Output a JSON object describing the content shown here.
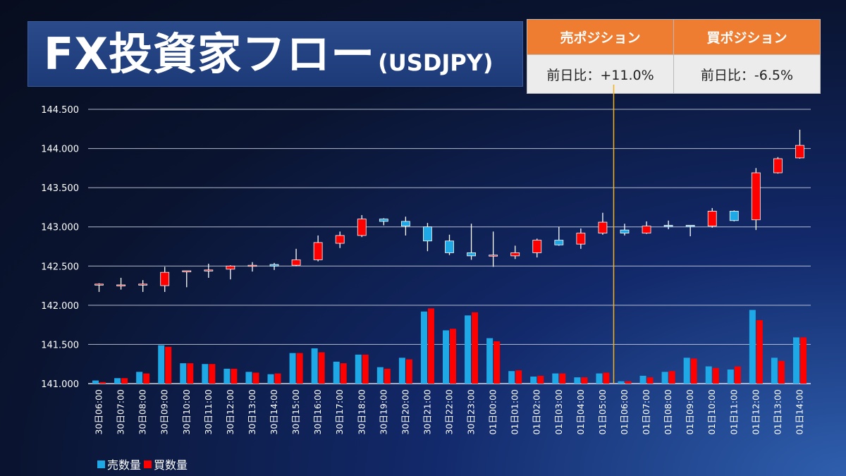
{
  "header": {
    "title_main": "FX投資家フロー",
    "title_sub": "(USDJPY)"
  },
  "positions": {
    "sell_label": "売ポジション",
    "buy_label": "買ポジション",
    "sell_change": "前日比：+11.0%",
    "buy_change": "前日比：-6.5%"
  },
  "colors": {
    "sell": "#1fa8e6",
    "buy": "#ff0000",
    "marker_line": "#f2b21b",
    "header_orange": "#ee7d31"
  },
  "legend": {
    "sell_volume": "売数量",
    "buy_volume": "買数量"
  },
  "chart_data": {
    "type": "candlestick+bar",
    "ylim": [
      141.0,
      144.5
    ],
    "yticks": [
      "144.500",
      "144.000",
      "143.500",
      "143.000",
      "142.500",
      "142.000",
      "141.500",
      "141.000"
    ],
    "ytick_values": [
      144.5,
      144.0,
      143.5,
      143.0,
      142.5,
      142.0,
      141.5,
      141.0
    ],
    "marker_category": "01日05:00",
    "categories": [
      "30日06:00",
      "30日07:00",
      "30日08:00",
      "30日09:00",
      "30日10:00",
      "30日11:00",
      "30日12:00",
      "30日13:00",
      "30日14:00",
      "30日15:00",
      "30日16:00",
      "30日17:00",
      "30日18:00",
      "30日19:00",
      "30日20:00",
      "30日21:00",
      "30日22:00",
      "30日23:00",
      "01日00:00",
      "01日01:00",
      "01日02:00",
      "01日03:00",
      "01日04:00",
      "01日05:00",
      "01日06:00",
      "01日07:00",
      "01日08:00",
      "01日09:00",
      "01日10:00",
      "01日11:00",
      "01日12:00",
      "01日13:00",
      "01日14:00"
    ],
    "candles": [
      {
        "o": 142.26,
        "h": 142.28,
        "l": 142.17,
        "c": 142.27
      },
      {
        "o": 142.26,
        "h": 142.35,
        "l": 142.2,
        "c": 142.26
      },
      {
        "o": 142.26,
        "h": 142.32,
        "l": 142.17,
        "c": 142.27
      },
      {
        "o": 142.25,
        "h": 142.49,
        "l": 142.17,
        "c": 142.42
      },
      {
        "o": 142.43,
        "h": 142.44,
        "l": 142.23,
        "c": 142.44
      },
      {
        "o": 142.44,
        "h": 142.53,
        "l": 142.35,
        "c": 142.45
      },
      {
        "o": 142.46,
        "h": 142.51,
        "l": 142.33,
        "c": 142.5
      },
      {
        "o": 142.5,
        "h": 142.55,
        "l": 142.43,
        "c": 142.51
      },
      {
        "o": 142.52,
        "h": 142.54,
        "l": 142.45,
        "c": 142.5
      },
      {
        "o": 142.51,
        "h": 142.72,
        "l": 142.5,
        "c": 142.58
      },
      {
        "o": 142.58,
        "h": 142.89,
        "l": 142.56,
        "c": 142.8
      },
      {
        "o": 142.79,
        "h": 142.94,
        "l": 142.73,
        "c": 142.89
      },
      {
        "o": 142.89,
        "h": 143.15,
        "l": 142.87,
        "c": 143.1
      },
      {
        "o": 143.1,
        "h": 143.11,
        "l": 143.02,
        "c": 143.07
      },
      {
        "o": 143.07,
        "h": 143.13,
        "l": 142.89,
        "c": 143.01
      },
      {
        "o": 143.0,
        "h": 143.05,
        "l": 142.69,
        "c": 142.82
      },
      {
        "o": 142.82,
        "h": 142.9,
        "l": 142.64,
        "c": 142.67
      },
      {
        "o": 142.67,
        "h": 143.04,
        "l": 142.58,
        "c": 142.63
      },
      {
        "o": 142.64,
        "h": 142.94,
        "l": 142.49,
        "c": 142.64
      },
      {
        "o": 142.63,
        "h": 142.76,
        "l": 142.59,
        "c": 142.67
      },
      {
        "o": 142.67,
        "h": 142.85,
        "l": 142.61,
        "c": 142.83
      },
      {
        "o": 142.83,
        "h": 143.0,
        "l": 142.76,
        "c": 142.77
      },
      {
        "o": 142.78,
        "h": 142.98,
        "l": 142.72,
        "c": 142.92
      },
      {
        "o": 142.92,
        "h": 143.18,
        "l": 142.9,
        "c": 143.06
      },
      {
        "o": 142.96,
        "h": 143.04,
        "l": 142.89,
        "c": 142.92
      },
      {
        "o": 142.92,
        "h": 143.07,
        "l": 142.91,
        "c": 143.01
      },
      {
        "o": 143.02,
        "h": 143.08,
        "l": 142.97,
        "c": 143.01
      },
      {
        "o": 143.02,
        "h": 143.02,
        "l": 142.88,
        "c": 143.01
      },
      {
        "o": 143.01,
        "h": 143.24,
        "l": 142.99,
        "c": 143.2
      },
      {
        "o": 143.2,
        "h": 143.21,
        "l": 143.07,
        "c": 143.08
      },
      {
        "o": 143.09,
        "h": 143.75,
        "l": 142.96,
        "c": 143.69
      },
      {
        "o": 143.69,
        "h": 143.89,
        "l": 143.68,
        "c": 143.87
      },
      {
        "o": 143.88,
        "h": 144.24,
        "l": 143.87,
        "c": 144.04
      }
    ],
    "series": [
      {
        "name": "売数量",
        "values": [
          141.04,
          141.07,
          141.15,
          141.49,
          141.26,
          141.25,
          141.19,
          141.15,
          141.12,
          141.39,
          141.45,
          141.28,
          141.37,
          141.21,
          141.33,
          141.92,
          141.68,
          141.87,
          141.58,
          141.16,
          141.09,
          141.13,
          141.08,
          141.13,
          141.03,
          141.1,
          141.15,
          141.33,
          141.22,
          141.18,
          141.94,
          141.33,
          141.59
        ]
      },
      {
        "name": "買数量",
        "values": [
          141.02,
          141.07,
          141.13,
          141.47,
          141.26,
          141.25,
          141.19,
          141.14,
          141.13,
          141.39,
          141.4,
          141.26,
          141.37,
          141.19,
          141.31,
          141.96,
          141.7,
          141.91,
          141.54,
          141.17,
          141.1,
          141.13,
          141.08,
          141.14,
          141.03,
          141.08,
          141.16,
          141.32,
          141.2,
          141.22,
          141.81,
          141.29,
          141.59
        ]
      }
    ]
  }
}
